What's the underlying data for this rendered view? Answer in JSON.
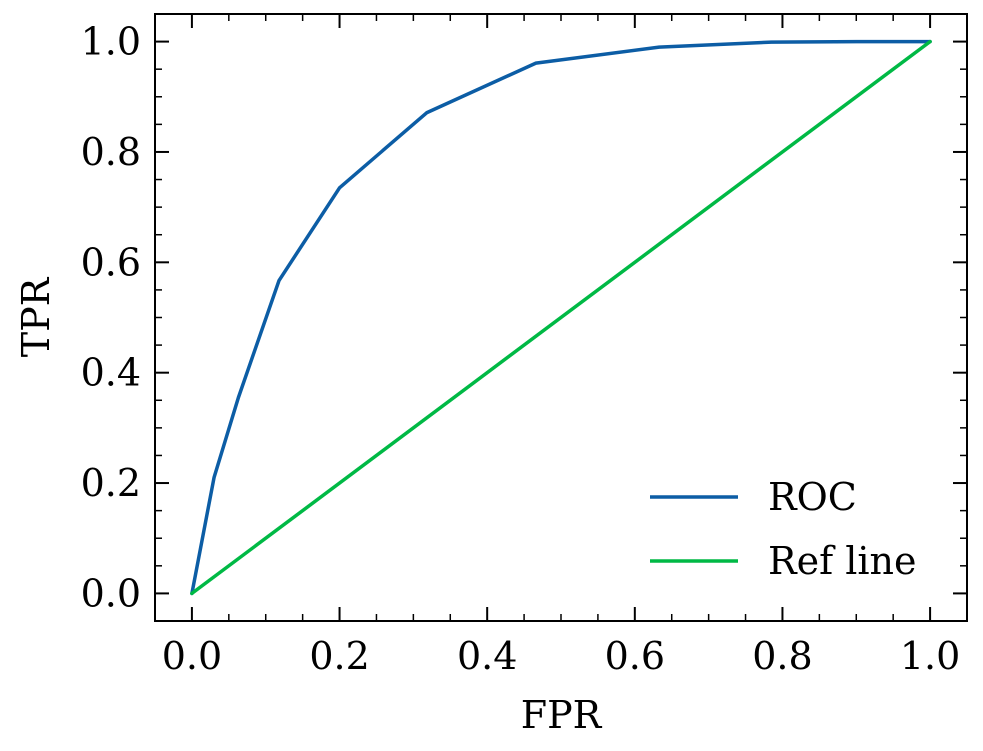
{
  "chart_data": {
    "type": "line",
    "title": "",
    "xlabel": "FPR",
    "ylabel": "TPR",
    "xlim": [
      -0.05,
      1.05
    ],
    "ylim": [
      -0.05,
      1.05
    ],
    "xticks": [
      0.0,
      0.2,
      0.4,
      0.6,
      0.8,
      1.0
    ],
    "yticks": [
      0.0,
      0.2,
      0.4,
      0.6,
      0.8,
      1.0
    ],
    "xtick_labels": [
      "0.0",
      "0.2",
      "0.4",
      "0.6",
      "0.8",
      "1.0"
    ],
    "ytick_labels": [
      "0.0",
      "0.2",
      "0.4",
      "0.6",
      "0.8",
      "1.0"
    ],
    "grid": false,
    "legend_position": "lower-right",
    "series": [
      {
        "name": "ROC",
        "color": "#0c5da5",
        "x": [
          0.0,
          0.03,
          0.063,
          0.118,
          0.2,
          0.318,
          0.466,
          0.633,
          0.785,
          0.9,
          1.0
        ],
        "y": [
          0.0,
          0.21,
          0.355,
          0.567,
          0.735,
          0.871,
          0.961,
          0.99,
          0.999,
          1.0,
          1.0
        ]
      },
      {
        "name": "Ref line",
        "color": "#00b945",
        "x": [
          0.0,
          1.0
        ],
        "y": [
          0.0,
          1.0
        ]
      }
    ]
  }
}
